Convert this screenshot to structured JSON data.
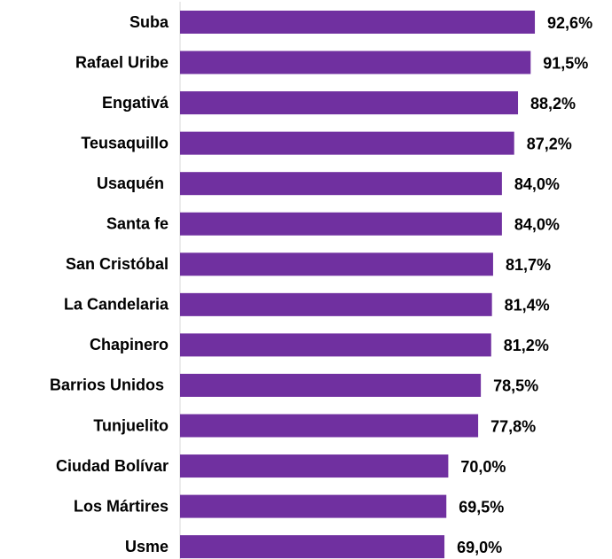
{
  "chart_data": {
    "type": "bar",
    "orientation": "horizontal",
    "color": "#7030a0",
    "categories": [
      "Suba",
      "Rafael Uribe",
      "Engativá",
      "Teusaquillo",
      "Usaquén ",
      "Santa fe",
      "San Cristóbal",
      "La Candelaria",
      "Chapinero",
      "Barrios Unidos ",
      "Tunjuelito",
      "Ciudad Bolívar",
      "Los Mártires",
      "Usme"
    ],
    "values": [
      92.6,
      91.5,
      88.2,
      87.2,
      84.0,
      84.0,
      81.7,
      81.4,
      81.2,
      78.5,
      77.8,
      70.0,
      69.5,
      69.0
    ],
    "value_labels": [
      "92,6%",
      "91,5%",
      "88,2%",
      "87,2%",
      "84,0%",
      "84,0%",
      "81,7%",
      "81,4%",
      "81,2%",
      "78,5%",
      "77,8%",
      "70,0%",
      "69,5%",
      "69,0%"
    ],
    "xlim": [
      0,
      100
    ]
  }
}
